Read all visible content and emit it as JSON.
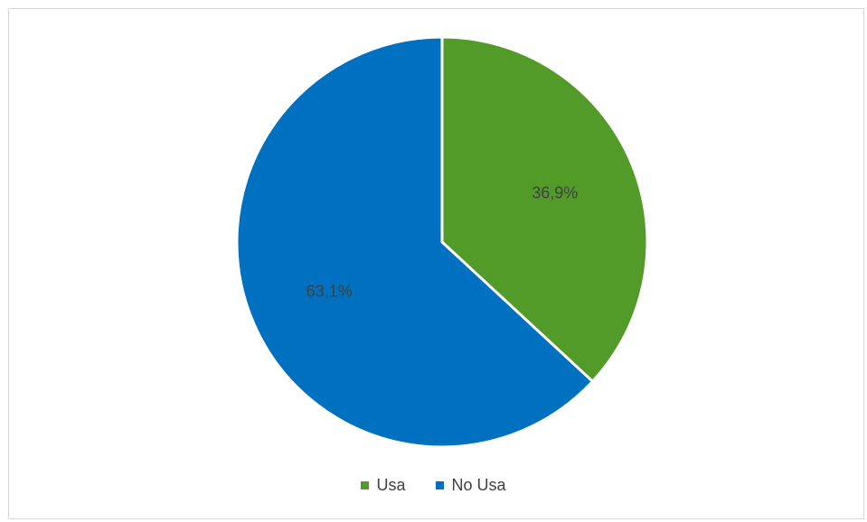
{
  "chart_data": {
    "type": "pie",
    "title": "",
    "slices": [
      {
        "label": "Usa",
        "value": 36.9,
        "display": "36,9%",
        "color": "#539b28"
      },
      {
        "label": "No Usa",
        "value": 63.1,
        "display": "63,1%",
        "color": "#0070c0"
      }
    ],
    "legend": {
      "position": "bottom",
      "items": [
        "Usa",
        "No Usa"
      ]
    }
  }
}
